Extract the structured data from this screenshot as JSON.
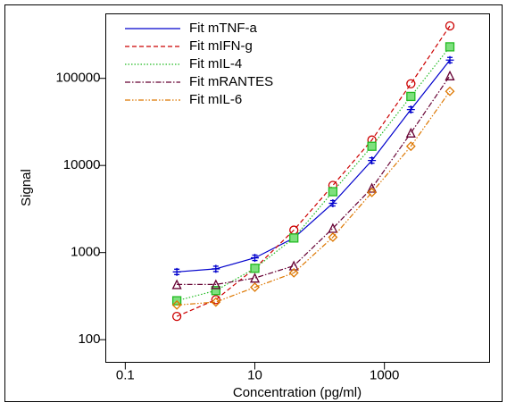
{
  "chart_data": {
    "type": "scatter",
    "x_label": "Concentration (pg/ml)",
    "y_label": "Signal",
    "xscale": "log",
    "yscale": "log",
    "xlim": [
      0.05,
      42000
    ],
    "ylim": [
      55,
      550000
    ],
    "xticks": [
      0.1,
      10,
      1000
    ],
    "yticks": [
      100,
      1000,
      10000,
      100000
    ],
    "legend": "upper left",
    "x": [
      0.625,
      2.5,
      10,
      40,
      160,
      640,
      2560,
      10240
    ],
    "series": [
      {
        "name": "Fit mTNF-a",
        "color": "#0000cc",
        "marker": "plus",
        "line": "solid",
        "values": [
          600,
          650,
          870,
          1470,
          3680,
          11400,
          43800,
          162000
        ]
      },
      {
        "name": "Fit mIFN-g",
        "color": "#cc0000",
        "marker": "circle",
        "line": "dashed",
        "values": [
          185,
          288,
          660,
          1810,
          5900,
          19600,
          86600,
          400000
        ]
      },
      {
        "name": "Fit mIL-4",
        "color": "#22bb22",
        "marker": "square",
        "line": "dotted",
        "values": [
          280,
          366,
          660,
          1470,
          5000,
          16600,
          62000,
          230000
        ]
      },
      {
        "name": "Fit mRANTES",
        "color": "#660033",
        "marker": "triangle",
        "line": "dashdot",
        "values": [
          430,
          430,
          510,
          705,
          1900,
          5500,
          23600,
          107000
        ]
      },
      {
        "name": "Fit mIL-6",
        "color": "#dd7700",
        "marker": "diamond",
        "line": "dashdotdot",
        "values": [
          250,
          270,
          400,
          585,
          1500,
          4900,
          16600,
          71000
        ]
      }
    ]
  }
}
